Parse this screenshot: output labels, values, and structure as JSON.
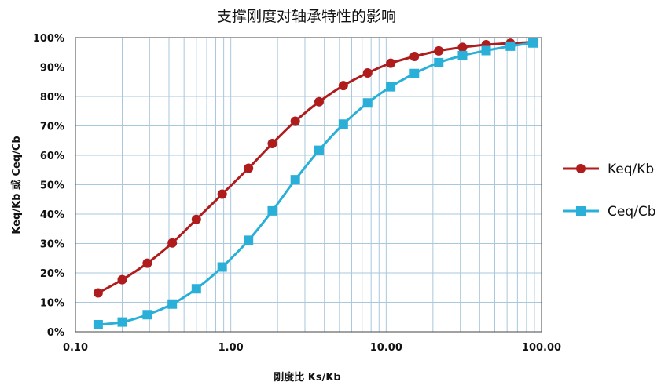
{
  "chart_data": {
    "type": "line",
    "title": "支撑刚度对轴承特性的影响",
    "xlabel": "刚度比 Ks/Kb",
    "ylabel": "Keq/Kb 或 Ceq/Cb",
    "xscale": "log",
    "xlim": [
      0.1,
      100
    ],
    "ylim": [
      0,
      100
    ],
    "x_ticks": [
      "0.10",
      "1.00",
      "10.00",
      "100.00"
    ],
    "y_ticks": [
      "0%",
      "10%",
      "20%",
      "30%",
      "40%",
      "50%",
      "60%",
      "70%",
      "80%",
      "90%",
      "100%"
    ],
    "grid": true,
    "legend_position": "right",
    "x": [
      0.14,
      0.2,
      0.29,
      0.42,
      0.6,
      0.88,
      1.3,
      1.85,
      2.6,
      3.7,
      5.3,
      7.6,
      10.7,
      15.2,
      21.8,
      31,
      44,
      63,
      88
    ],
    "series": [
      {
        "name": "Keq/Kb",
        "color": "#b01c1c",
        "marker": "circle",
        "values": [
          13.2,
          17.7,
          23.3,
          30.2,
          38.2,
          46.8,
          55.6,
          64.0,
          71.6,
          78.2,
          83.7,
          88.0,
          91.3,
          93.6,
          95.5,
          96.7,
          97.6,
          98.1,
          98.5
        ]
      },
      {
        "name": "Ceq/Cb",
        "color": "#2ab0d8",
        "marker": "square",
        "values": [
          2.4,
          3.3,
          5.8,
          9.4,
          14.6,
          22.0,
          31.1,
          41.1,
          51.7,
          61.7,
          70.6,
          77.8,
          83.3,
          87.8,
          91.5,
          93.9,
          95.6,
          97.1,
          98.2
        ]
      }
    ]
  }
}
